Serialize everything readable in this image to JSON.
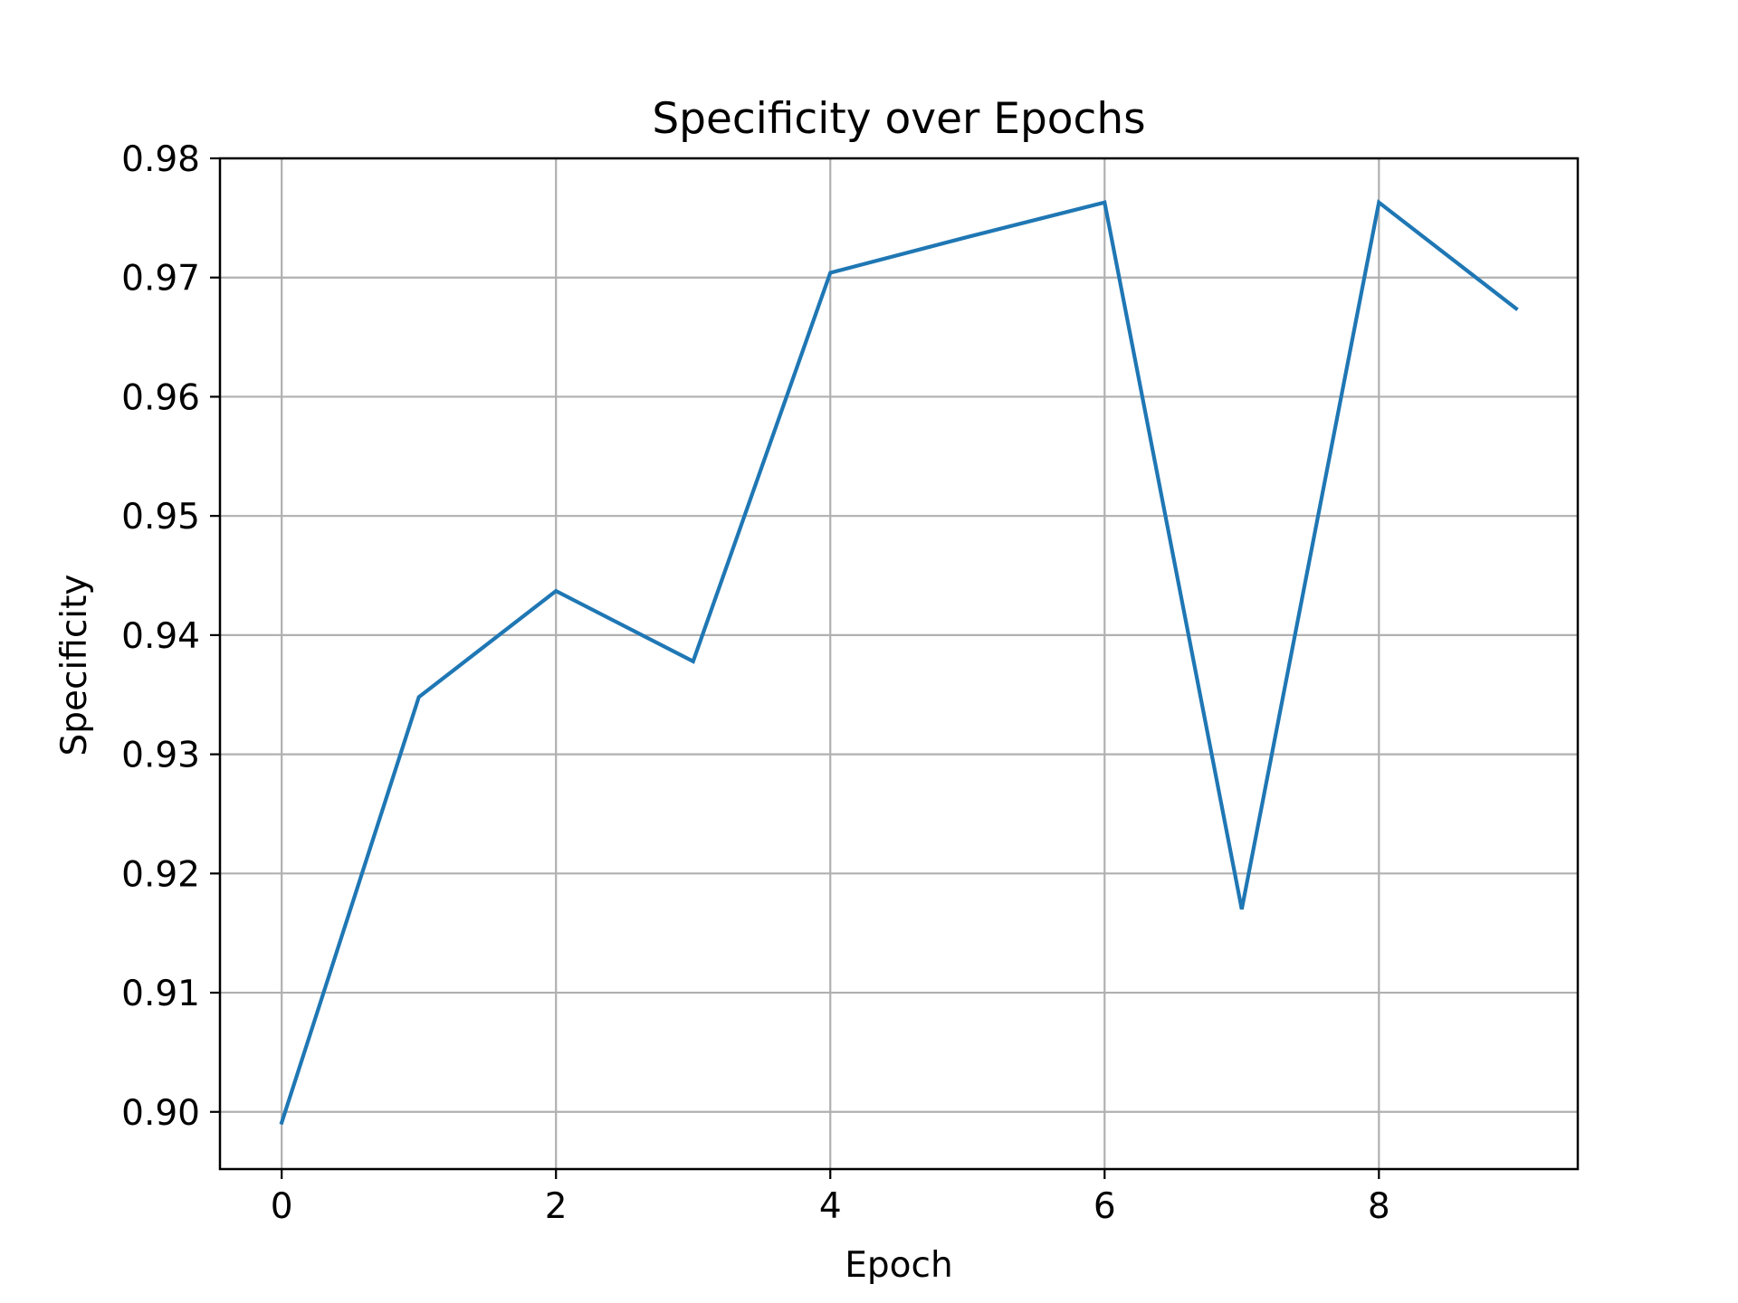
{
  "chart_data": {
    "type": "line",
    "title": "Specificity over Epochs",
    "xlabel": "Epoch",
    "ylabel": "Specificity",
    "xlim": [
      -0.45,
      9.45
    ],
    "ylim": [
      0.8952,
      0.98
    ],
    "xticks": [
      0,
      2,
      4,
      6,
      8
    ],
    "xtick_labels": [
      "0",
      "2",
      "4",
      "6",
      "8"
    ],
    "yticks": [
      0.9,
      0.91,
      0.92,
      0.93,
      0.94,
      0.95,
      0.96,
      0.97,
      0.98
    ],
    "ytick_labels": [
      "0.90",
      "0.91",
      "0.92",
      "0.93",
      "0.94",
      "0.95",
      "0.96",
      "0.97",
      "0.98"
    ],
    "grid": true,
    "x": [
      0,
      1,
      2,
      3,
      4,
      5,
      6,
      7,
      8,
      9
    ],
    "series": [
      {
        "values": [
          0.8991,
          0.9348,
          0.9437,
          0.9378,
          0.9704,
          0.9734,
          0.9763,
          0.917,
          0.9763,
          0.9674
        ],
        "color": "#1f77b4"
      }
    ],
    "grid_color": "#b0b0b0",
    "axis_color": "#000000"
  }
}
